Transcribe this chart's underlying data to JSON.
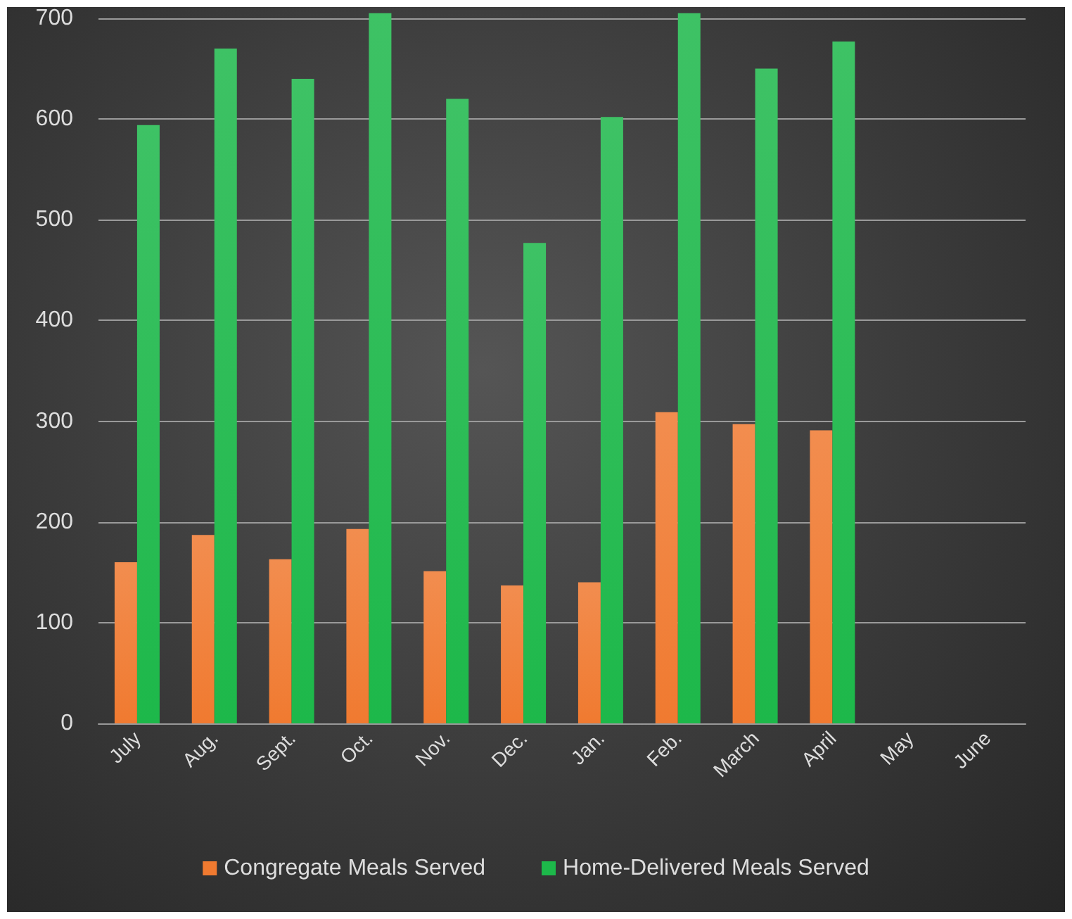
{
  "chart_data": {
    "type": "bar",
    "categories": [
      "July",
      "Aug.",
      "Sept.",
      "Oct.",
      "Nov.",
      "Dec.",
      "Jan.",
      "Feb.",
      "March",
      "April",
      "May",
      "June"
    ],
    "series": [
      {
        "name": "Congregate Meals Served",
        "color": "#f07a30",
        "values": [
          160,
          187,
          163,
          193,
          151,
          137,
          140,
          309,
          297,
          291,
          null,
          null
        ]
      },
      {
        "name": "Home-Delivered Meals Served",
        "color": "#1db84a",
        "values": [
          594,
          670,
          640,
          705,
          620,
          477,
          602,
          705,
          650,
          677,
          null,
          null
        ]
      }
    ],
    "ylim": [
      0,
      710
    ],
    "yticks": [
      0,
      100,
      200,
      300,
      400,
      500,
      600,
      700
    ],
    "grid": "y",
    "legend": "bottom"
  }
}
